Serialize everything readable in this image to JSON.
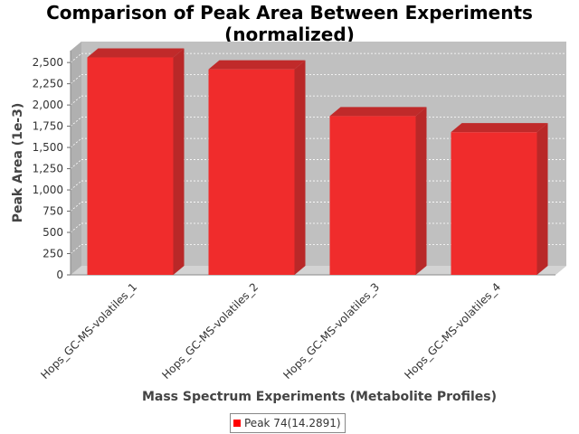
{
  "chart_data": {
    "type": "bar",
    "title": "Comparison of Peak Area Between Experiments (normalized)",
    "title_lines": [
      "Comparison of Peak Area Between Experiments",
      "(normalized)"
    ],
    "xlabel": "Mass Spectrum Experiments (Metabolite Profiles)",
    "ylabel": "Peak Area (1e-3)",
    "categories": [
      "Hops_GC-MS-volatiles_1",
      "Hops_GC-MS-volatiles_2",
      "Hops_GC-MS-volatiles_3",
      "Hops_GC-MS-volatiles_4"
    ],
    "series": [
      {
        "name": "Peak 74(14.2891)",
        "values": [
          2560,
          2420,
          1870,
          1680
        ],
        "color": "#ff0000"
      }
    ],
    "ylim": [
      0,
      2640
    ],
    "yticks": [
      0,
      250,
      500,
      750,
      1000,
      1250,
      1500,
      1750,
      2000,
      2250,
      2500
    ],
    "ytick_labels": [
      "0",
      "250",
      "500",
      "750",
      "1,000",
      "1,250",
      "1,500",
      "1,750",
      "2,000",
      "2,250",
      "2,500"
    ],
    "grid": true,
    "legend_position": "bottom",
    "style": "3d-bar",
    "colors": {
      "plot_background": "#c0c0c0",
      "bar_front": "#f02c2c",
      "bar_side": "#b92828",
      "bar_top": "#c02a2a",
      "grid": "#ffffff"
    }
  }
}
